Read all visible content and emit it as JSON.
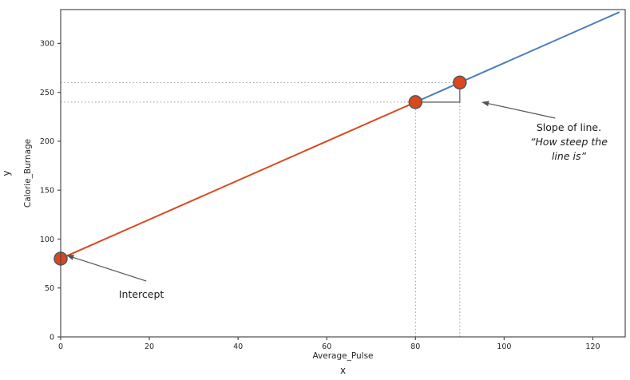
{
  "figure": {
    "background": "#ffffff"
  },
  "chart_data": {
    "type": "line",
    "title": "",
    "xlabel": "Average_Pulse",
    "xlabel_sub": "x",
    "ylabel": "Calorie_Burnage",
    "ylabel_sub": "y",
    "xlim": [
      0,
      127.3
    ],
    "ylim": [
      0,
      334.6
    ],
    "grid": false,
    "legend": "none",
    "xticks": [
      0,
      20,
      40,
      60,
      80,
      100,
      120
    ],
    "yticks": [
      0,
      50,
      100,
      150,
      200,
      250,
      300
    ],
    "line_function": {
      "slope": 2,
      "intercept": 80
    },
    "segments": [
      {
        "name": "line-segment-red",
        "x_from": 0,
        "x_to": 80,
        "color": "#d9481f"
      },
      {
        "name": "line-segment-blue",
        "x_from": 80,
        "x_to": 126,
        "color": "#4a7ebf"
      }
    ],
    "points": [
      {
        "x": 0,
        "y": 80,
        "label": "intercept-point"
      },
      {
        "x": 80,
        "y": 240,
        "label": "slope-point-1"
      },
      {
        "x": 90,
        "y": 260,
        "label": "slope-point-2"
      }
    ],
    "point_style": {
      "fill": "#d9481f",
      "stroke": "#555555",
      "radius": 8
    },
    "guides": [
      {
        "name": "h-guide-240",
        "axis": "h",
        "value": 240,
        "to": 80
      },
      {
        "name": "h-guide-260",
        "axis": "h",
        "value": 260,
        "to": 90
      },
      {
        "name": "v-guide-80",
        "axis": "v",
        "value": 80,
        "to": 240
      },
      {
        "name": "v-guide-90",
        "axis": "v",
        "value": 90,
        "to": 260
      }
    ],
    "guide_color": "#999999",
    "slope_marker": {
      "x1": 80,
      "x2": 90,
      "y1": 240,
      "y2": 260,
      "color": "#666666"
    },
    "axis_color": "#4d4d4d",
    "tick_label_color": "#262626",
    "annotation_color": "#1a1a1a",
    "arrow_color": "#555555",
    "annotations": [
      {
        "name": "intercept",
        "lines": [
          {
            "text": "Intercept",
            "italic": false
          }
        ],
        "text_xy": [
          18.2,
          40.0
        ],
        "arrow_from": [
          19.3,
          57.1
        ],
        "arrow_to": [
          1.5,
          83.2
        ]
      },
      {
        "name": "slope",
        "lines": [
          {
            "text": "Slope of line.",
            "italic": false
          },
          {
            "text": "“How steep the",
            "italic": true
          },
          {
            "text": "line is”",
            "italic": true
          }
        ],
        "text_xy": [
          114.6,
          210.5
        ],
        "arrow_from": [
          111.5,
          223.6
        ],
        "arrow_to": [
          95.1,
          239.9
        ]
      }
    ]
  }
}
